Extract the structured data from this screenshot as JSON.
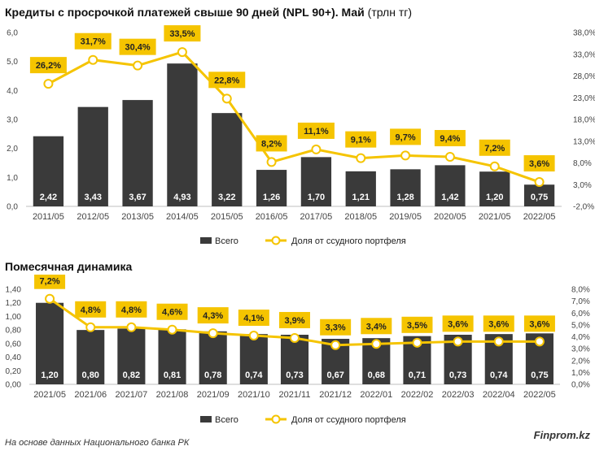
{
  "colors": {
    "bar": "#3a3a3a",
    "line": "#f5c400",
    "marker_fill": "#ffffff",
    "label_bg": "#f5c400",
    "axis_text": "#444444"
  },
  "footer": {
    "source": "На основе данных Национального банка РК",
    "brand": "Finprom.kz"
  },
  "chart_data": [
    {
      "type": "bar",
      "title": "Кредиты с просрочкой платежей свыше 90 дней (NPL 90+). Май",
      "unit": "(трлн тг)",
      "categories": [
        "2011/05",
        "2012/05",
        "2013/05",
        "2014/05",
        "2015/05",
        "2016/05",
        "2017/05",
        "2018/05",
        "2019/05",
        "2020/05",
        "2021/05",
        "2022/05"
      ],
      "series": [
        {
          "name": "Всего",
          "type": "bar",
          "axis": "left",
          "values": [
            2.42,
            3.43,
            3.67,
            4.93,
            3.22,
            1.26,
            1.7,
            1.21,
            1.28,
            1.42,
            1.2,
            0.75
          ],
          "labels": [
            "2,42",
            "3,43",
            "3,67",
            "4,93",
            "3,22",
            "1,26",
            "1,70",
            "1,21",
            "1,28",
            "1,42",
            "1,20",
            "0,75"
          ]
        },
        {
          "name": "Доля от ссудного портфеля",
          "type": "line",
          "axis": "right",
          "values": [
            26.2,
            31.7,
            30.4,
            33.5,
            22.8,
            8.2,
            11.1,
            9.1,
            9.7,
            9.4,
            7.2,
            3.6
          ],
          "labels": [
            "26,2%",
            "31,7%",
            "30,4%",
            "33,5%",
            "22,8%",
            "8,2%",
            "11,1%",
            "9,1%",
            "9,7%",
            "9,4%",
            "7,2%",
            "3,6%"
          ]
        }
      ],
      "ylim": [
        0,
        6
      ],
      "yticks": [
        "0,0",
        "1,0",
        "2,0",
        "3,0",
        "4,0",
        "5,0",
        "6,0"
      ],
      "y2lim": [
        -2,
        38
      ],
      "y2ticks": [
        "-2,0%",
        "3,0%",
        "8,0%",
        "13,0%",
        "18,0%",
        "23,0%",
        "28,0%",
        "33,0%",
        "38,0%"
      ],
      "legend": [
        "Всего",
        "Доля от ссудного портфеля"
      ],
      "legend_position": "bottom",
      "grid": false
    },
    {
      "type": "bar",
      "title": "Помесячная динамика",
      "categories": [
        "2021/05",
        "2021/06",
        "2021/07",
        "2021/08",
        "2021/09",
        "2021/10",
        "2021/11",
        "2021/12",
        "2022/01",
        "2022/02",
        "2022/03",
        "2022/04",
        "2022/05"
      ],
      "series": [
        {
          "name": "Всего",
          "type": "bar",
          "axis": "left",
          "values": [
            1.2,
            0.8,
            0.82,
            0.81,
            0.78,
            0.74,
            0.73,
            0.67,
            0.68,
            0.71,
            0.73,
            0.74,
            0.75
          ],
          "labels": [
            "1,20",
            "0,80",
            "0,82",
            "0,81",
            "0,78",
            "0,74",
            "0,73",
            "0,67",
            "0,68",
            "0,71",
            "0,73",
            "0,74",
            "0,75"
          ]
        },
        {
          "name": "Доля от ссудного портфеля",
          "type": "line",
          "axis": "right",
          "values": [
            7.2,
            4.8,
            4.8,
            4.6,
            4.3,
            4.1,
            3.9,
            3.3,
            3.4,
            3.5,
            3.6,
            3.6,
            3.6
          ],
          "labels": [
            "7,2%",
            "4,8%",
            "4,8%",
            "4,6%",
            "4,3%",
            "4,1%",
            "3,9%",
            "3,3%",
            "3,4%",
            "3,5%",
            "3,6%",
            "3,6%",
            "3,6%"
          ]
        }
      ],
      "ylim": [
        0,
        1.4
      ],
      "yticks": [
        "0,00",
        "0,20",
        "0,40",
        "0,60",
        "0,80",
        "1,00",
        "1,20",
        "1,40"
      ],
      "y2lim": [
        0,
        8
      ],
      "y2ticks": [
        "0,0%",
        "1,0%",
        "2,0%",
        "3,0%",
        "4,0%",
        "5,0%",
        "6,0%",
        "7,0%",
        "8,0%"
      ],
      "legend": [
        "Всего",
        "Доля от ссудного портфеля"
      ],
      "legend_position": "bottom",
      "grid": false
    }
  ]
}
